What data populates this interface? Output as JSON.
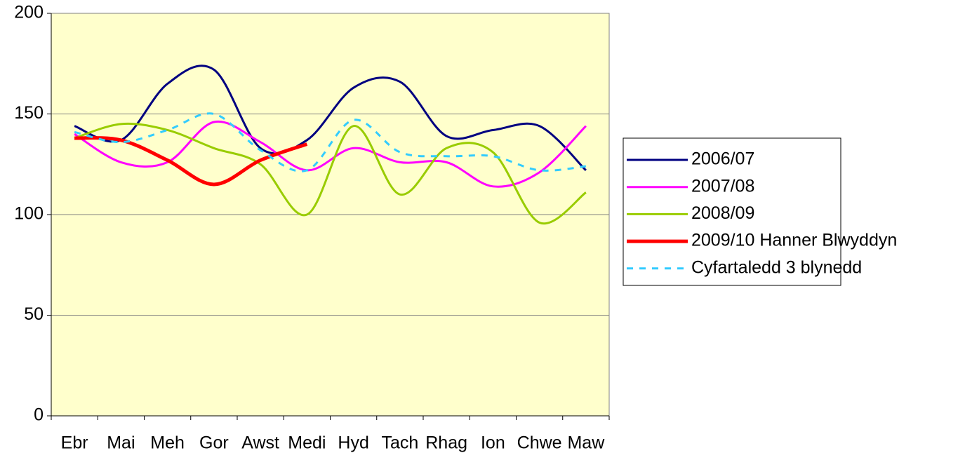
{
  "chart_data": {
    "type": "line",
    "categories": [
      "Ebr",
      "Mai",
      "Meh",
      "Gor",
      "Awst",
      "Medi",
      "Hyd",
      "Tach",
      "Rhag",
      "Ion",
      "Chwe",
      "Maw"
    ],
    "series": [
      {
        "name": "2006/07",
        "color": "#000080",
        "style": "solid",
        "values": [
          144,
          137,
          165,
          172,
          133,
          137,
          163,
          166,
          139,
          142,
          144,
          122
        ]
      },
      {
        "name": "2007/08",
        "color": "#ff00ff",
        "style": "solid",
        "values": [
          140,
          126,
          126,
          146,
          136,
          122,
          133,
          126,
          126,
          114,
          121,
          144
        ]
      },
      {
        "name": "2008/09",
        "color": "#99cc00",
        "style": "solid",
        "values": [
          138,
          145,
          142,
          133,
          125,
          100,
          144,
          110,
          133,
          131,
          96,
          111
        ]
      },
      {
        "name": "2009/10 Hanner Blwyddyn",
        "color": "#ff0000",
        "style": "bold",
        "values": [
          138,
          137,
          127,
          115,
          127,
          135,
          null,
          null,
          null,
          null,
          null,
          null
        ]
      },
      {
        "name": "Cyfartaledd 3 blynedd",
        "color": "#33ccff",
        "style": "dashed",
        "values": [
          141,
          136,
          142,
          150,
          132,
          122,
          147,
          131,
          129,
          129,
          122,
          124
        ]
      }
    ],
    "ylim": [
      0,
      200
    ],
    "yticks": [
      0,
      50,
      100,
      150,
      200
    ],
    "grid": true,
    "legend": "right",
    "background": "#ffffcc"
  }
}
